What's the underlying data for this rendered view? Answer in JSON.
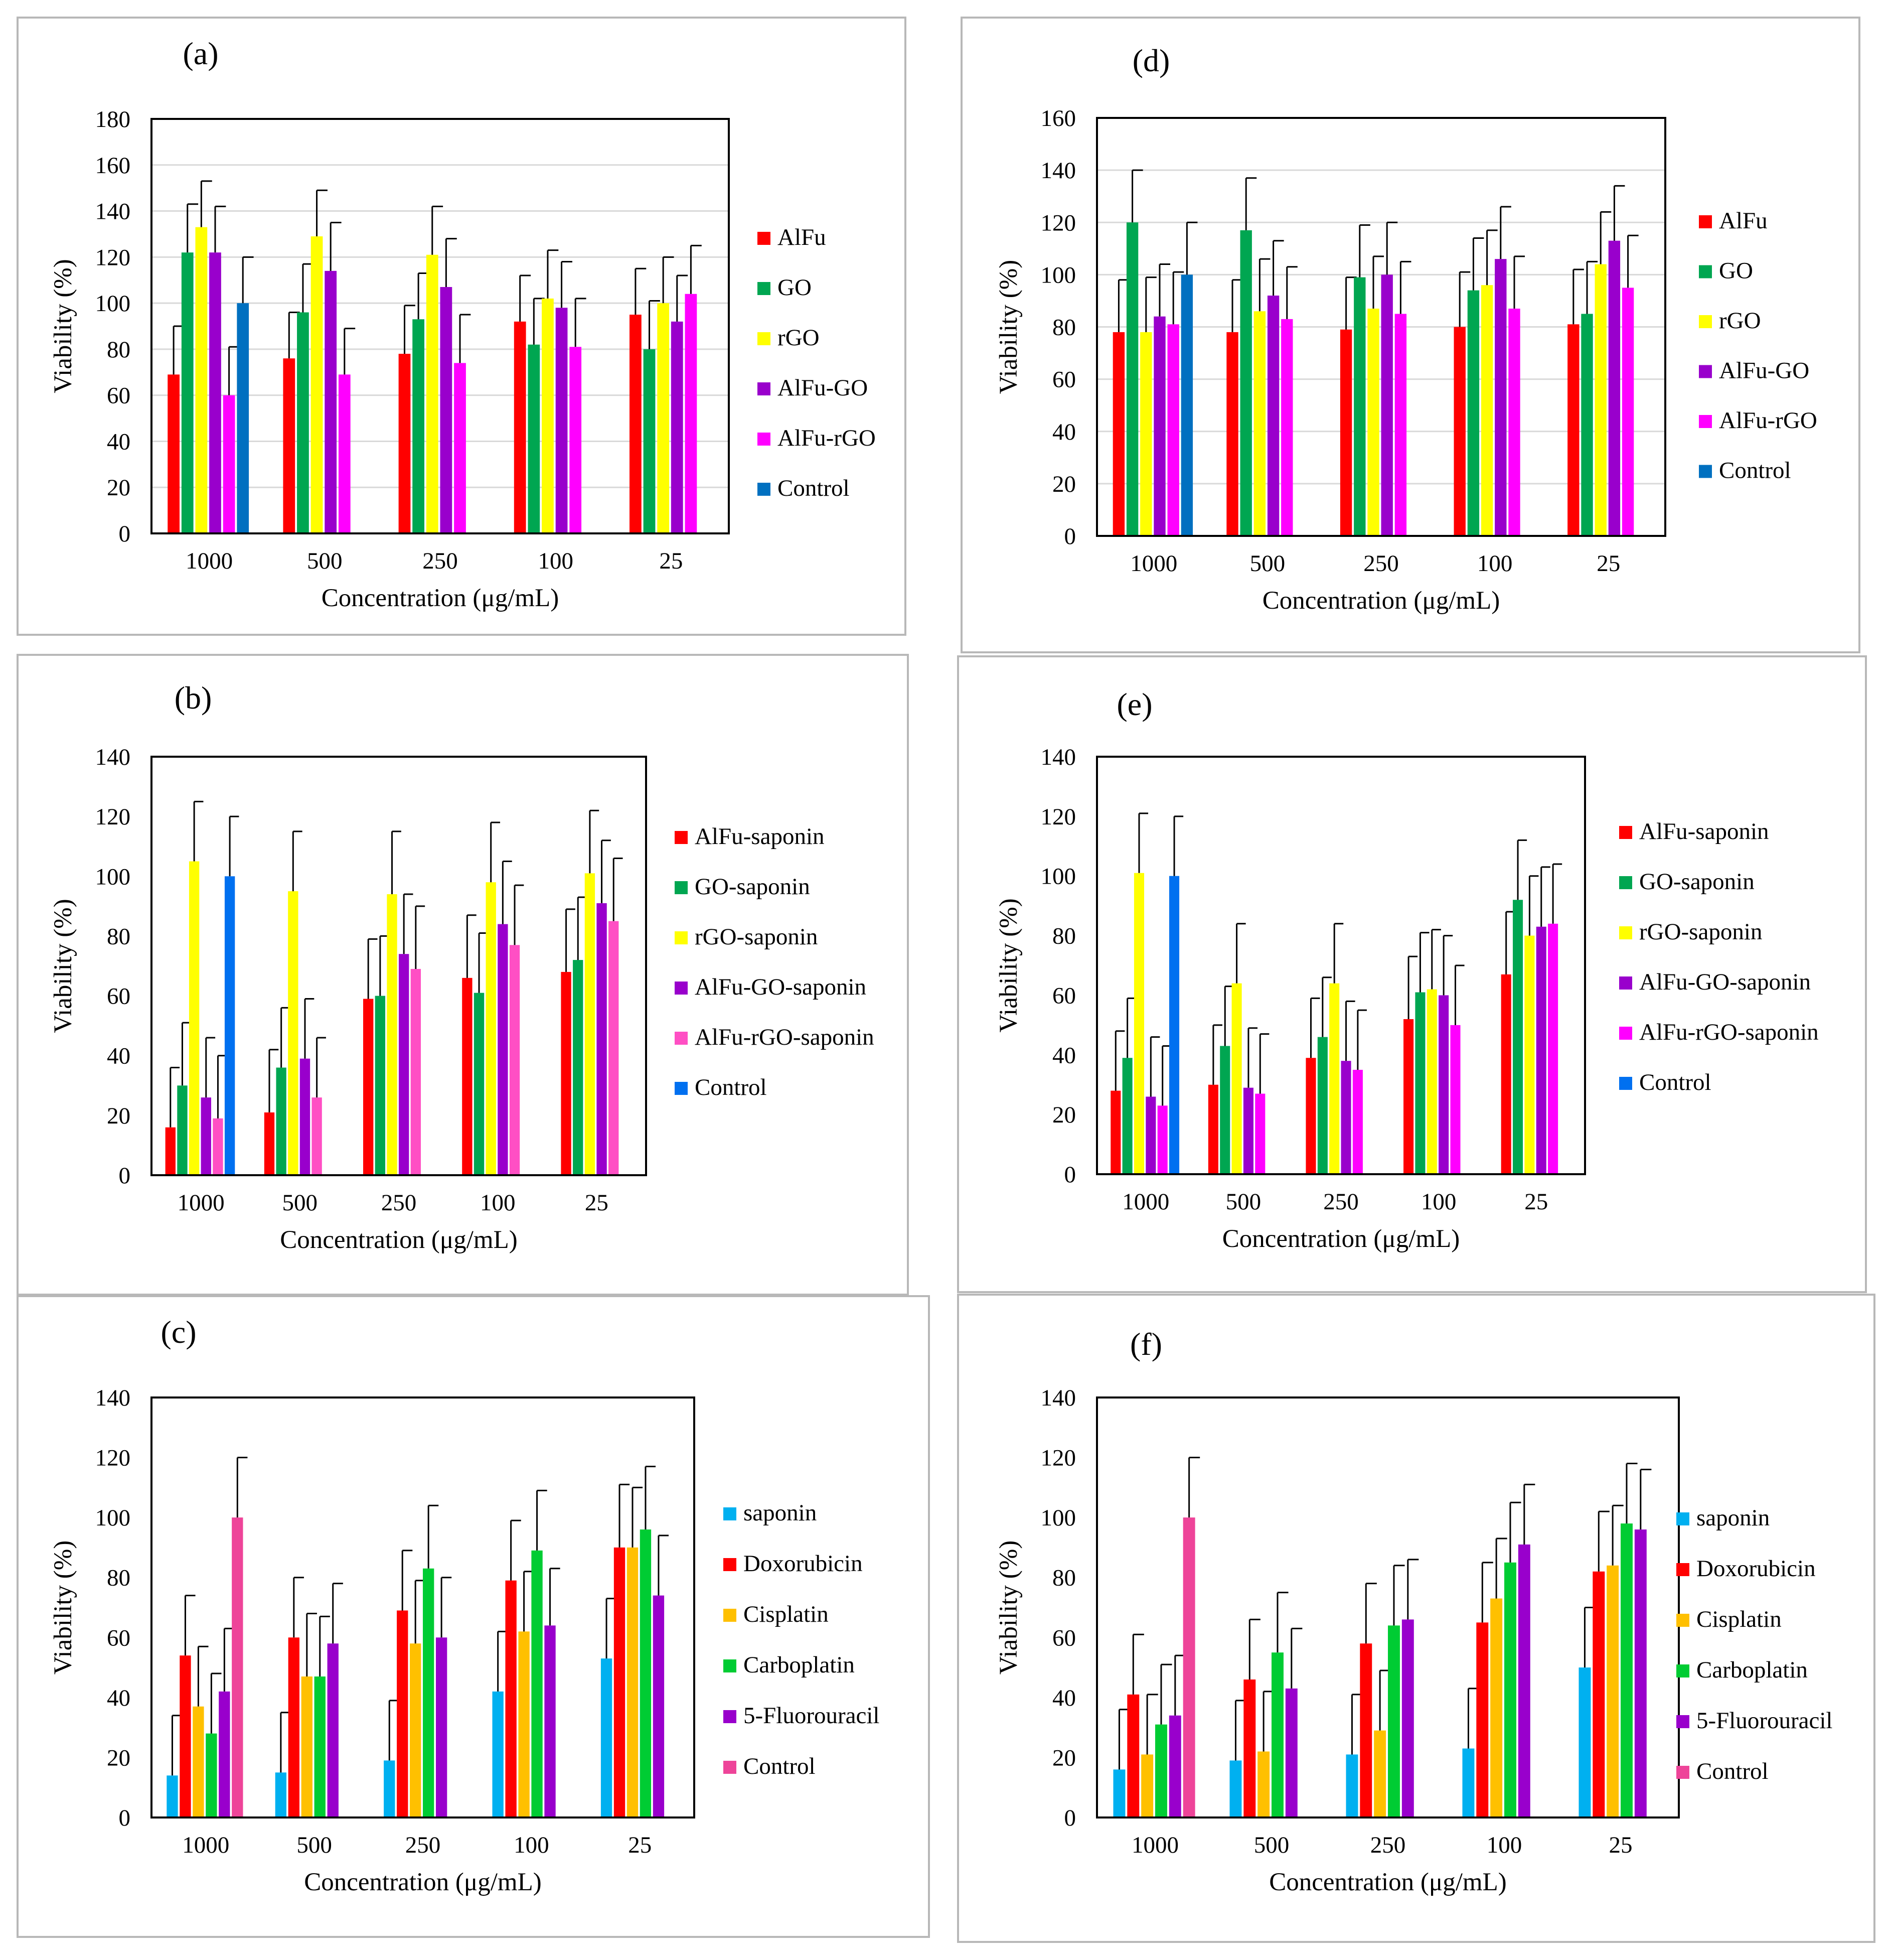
{
  "chart_data": [
    {
      "type": "bar",
      "panel_label": "(a)",
      "categories": [
        "1000",
        "500",
        "250",
        "100",
        "25"
      ],
      "xlabel": "Concentration (μg/mL)",
      "ylabel": "Viability  (%)",
      "ylim": [
        0,
        180
      ],
      "yticks": [
        0,
        20,
        40,
        60,
        80,
        100,
        120,
        140,
        160,
        180
      ],
      "grid": true,
      "legend_position": "right",
      "series": [
        {
          "name": "AlFu",
          "color": "#ff0000",
          "values": [
            69,
            76,
            78,
            92,
            95
          ],
          "errors": [
            21,
            20,
            21,
            20,
            20
          ]
        },
        {
          "name": "GO",
          "color": "#00a651",
          "values": [
            122,
            96,
            93,
            82,
            80
          ],
          "errors": [
            21,
            21,
            20,
            20,
            21
          ]
        },
        {
          "name": "rGO",
          "color": "#ffff00",
          "values": [
            133,
            129,
            121,
            102,
            100
          ],
          "errors": [
            20,
            20,
            21,
            21,
            20
          ]
        },
        {
          "name": "AlFu-GO",
          "color": "#9900cc",
          "values": [
            122,
            114,
            107,
            98,
            92
          ],
          "errors": [
            20,
            21,
            21,
            20,
            20
          ]
        },
        {
          "name": "AlFu-rGO",
          "color": "#ff00ff",
          "values": [
            60,
            69,
            74,
            81,
            104
          ],
          "errors": [
            21,
            20,
            21,
            21,
            21
          ]
        },
        {
          "name": "Control",
          "color": "#0070c0",
          "values": [
            100,
            null,
            null,
            null,
            null
          ],
          "errors": [
            20,
            null,
            null,
            null,
            null
          ]
        }
      ]
    },
    {
      "type": "bar",
      "panel_label": "(b)",
      "categories": [
        "1000",
        "500",
        "250",
        "100",
        "25"
      ],
      "xlabel": "Concentration (μg/mL)",
      "ylabel": "Viability  (%)",
      "ylim": [
        0,
        140
      ],
      "yticks": [
        0,
        20,
        40,
        60,
        80,
        100,
        120,
        140
      ],
      "grid": false,
      "legend_position": "right",
      "series": [
        {
          "name": "AlFu-saponin",
          "color": "#ff0000",
          "values": [
            16,
            21,
            59,
            66,
            68
          ],
          "errors": [
            20,
            21,
            20,
            21,
            21
          ]
        },
        {
          "name": "GO-saponin",
          "color": "#00a651",
          "values": [
            30,
            36,
            60,
            61,
            72
          ],
          "errors": [
            21,
            20,
            20,
            20,
            21
          ]
        },
        {
          "name": "rGO-saponin",
          "color": "#ffff00",
          "values": [
            105,
            95,
            94,
            98,
            101
          ],
          "errors": [
            20,
            20,
            21,
            20,
            21
          ]
        },
        {
          "name": "AlFu-GO-saponin",
          "color": "#9900cc",
          "values": [
            26,
            39,
            74,
            84,
            91
          ],
          "errors": [
            20,
            20,
            20,
            21,
            21
          ]
        },
        {
          "name": "AlFu-rGO-saponin",
          "color": "#ff4fc4",
          "values": [
            19,
            26,
            69,
            77,
            85
          ],
          "errors": [
            21,
            20,
            21,
            20,
            21
          ]
        },
        {
          "name": "Control",
          "color": "#0070f0",
          "values": [
            100,
            null,
            null,
            null,
            null
          ],
          "errors": [
            20,
            null,
            null,
            null,
            null
          ]
        }
      ]
    },
    {
      "type": "bar",
      "panel_label": "(c)",
      "categories": [
        "1000",
        "500",
        "250",
        "100",
        "25"
      ],
      "xlabel": "Concentration (μg/mL)",
      "ylabel": "Viability  (%)",
      "ylim": [
        0,
        140
      ],
      "yticks": [
        0,
        20,
        40,
        60,
        80,
        100,
        120,
        140
      ],
      "grid": false,
      "legend_position": "right",
      "series": [
        {
          "name": "saponin",
          "color": "#00b0f0",
          "values": [
            14,
            15,
            19,
            42,
            53
          ],
          "errors": [
            20,
            20,
            20,
            20,
            20
          ]
        },
        {
          "name": "Doxorubicin",
          "color": "#ff0000",
          "values": [
            54,
            60,
            69,
            79,
            90
          ],
          "errors": [
            20,
            20,
            20,
            20,
            21
          ]
        },
        {
          "name": "Cisplatin",
          "color": "#ffc000",
          "values": [
            37,
            47,
            58,
            62,
            90
          ],
          "errors": [
            20,
            21,
            21,
            20,
            20
          ]
        },
        {
          "name": "Carboplatin",
          "color": "#00cc33",
          "values": [
            28,
            47,
            83,
            89,
            96
          ],
          "errors": [
            20,
            20,
            21,
            20,
            21
          ]
        },
        {
          "name": "5-Fluorouracil",
          "color": "#9900cc",
          "values": [
            42,
            58,
            60,
            64,
            74
          ],
          "errors": [
            21,
            20,
            20,
            19,
            20
          ]
        },
        {
          "name": "Control",
          "color": "#ee4499",
          "values": [
            100,
            null,
            null,
            null,
            null
          ],
          "errors": [
            20,
            null,
            null,
            null,
            null
          ]
        }
      ]
    },
    {
      "type": "bar",
      "panel_label": "(d)",
      "categories": [
        "1000",
        "500",
        "250",
        "100",
        "25"
      ],
      "xlabel": "Concentration (μg/mL)",
      "ylabel": "Viability  (%)",
      "ylim": [
        0,
        160
      ],
      "yticks": [
        0,
        20,
        40,
        60,
        80,
        100,
        120,
        140,
        160
      ],
      "grid": true,
      "legend_position": "right",
      "series": [
        {
          "name": "AlFu",
          "color": "#ff0000",
          "values": [
            78,
            78,
            79,
            80,
            81
          ],
          "errors": [
            20,
            20,
            20,
            21,
            21
          ]
        },
        {
          "name": "GO",
          "color": "#00a651",
          "values": [
            120,
            117,
            99,
            94,
            85
          ],
          "errors": [
            20,
            20,
            20,
            20,
            20
          ]
        },
        {
          "name": "rGO",
          "color": "#ffff00",
          "values": [
            78,
            86,
            87,
            96,
            104
          ],
          "errors": [
            21,
            20,
            20,
            21,
            20
          ]
        },
        {
          "name": "AlFu-GO",
          "color": "#9900cc",
          "values": [
            84,
            92,
            100,
            106,
            113
          ],
          "errors": [
            20,
            21,
            20,
            20,
            21
          ]
        },
        {
          "name": "AlFu-rGO",
          "color": "#ff00ff",
          "values": [
            81,
            83,
            85,
            87,
            95
          ],
          "errors": [
            20,
            20,
            20,
            20,
            20
          ]
        },
        {
          "name": "Control",
          "color": "#0070c0",
          "values": [
            100,
            null,
            null,
            null,
            null
          ],
          "errors": [
            20,
            null,
            null,
            null,
            null
          ]
        }
      ]
    },
    {
      "type": "bar",
      "panel_label": "(e)",
      "categories": [
        "1000",
        "500",
        "250",
        "100",
        "25"
      ],
      "xlabel": "Concentration (μg/mL)",
      "ylabel": "Viability  (%)",
      "ylim": [
        0,
        140
      ],
      "yticks": [
        0,
        20,
        40,
        60,
        80,
        100,
        120,
        140
      ],
      "grid": false,
      "legend_position": "right",
      "series": [
        {
          "name": "AlFu-saponin",
          "color": "#ff0000",
          "values": [
            28,
            30,
            39,
            52,
            67
          ],
          "errors": [
            20,
            20,
            20,
            21,
            21
          ]
        },
        {
          "name": "GO-saponin",
          "color": "#00a651",
          "values": [
            39,
            43,
            46,
            61,
            92
          ],
          "errors": [
            20,
            20,
            20,
            20,
            20
          ]
        },
        {
          "name": "rGO-saponin",
          "color": "#ffff00",
          "values": [
            101,
            64,
            64,
            62,
            80
          ],
          "errors": [
            20,
            20,
            20,
            20,
            20
          ]
        },
        {
          "name": "AlFu-GO-saponin",
          "color": "#9900cc",
          "values": [
            26,
            29,
            38,
            60,
            83
          ],
          "errors": [
            20,
            20,
            20,
            20,
            20
          ]
        },
        {
          "name": "AlFu-rGO-saponin",
          "color": "#ff00ff",
          "values": [
            23,
            27,
            35,
            50,
            84
          ],
          "errors": [
            20,
            20,
            20,
            20,
            20
          ]
        },
        {
          "name": "Control",
          "color": "#0070f0",
          "values": [
            100,
            null,
            null,
            null,
            null
          ],
          "errors": [
            20,
            null,
            null,
            null,
            null
          ]
        }
      ]
    },
    {
      "type": "bar",
      "panel_label": "(f)",
      "categories": [
        "1000",
        "500",
        "250",
        "100",
        "25"
      ],
      "xlabel": "Concentration (μg/mL)",
      "ylabel": "Viability  (%)",
      "ylim": [
        0,
        140
      ],
      "yticks": [
        0,
        20,
        40,
        60,
        80,
        100,
        120,
        140
      ],
      "grid": false,
      "legend_position": "right",
      "series": [
        {
          "name": "saponin",
          "color": "#00b0f0",
          "values": [
            16,
            19,
            21,
            23,
            50
          ],
          "errors": [
            20,
            20,
            20,
            20,
            20
          ]
        },
        {
          "name": "Doxorubicin",
          "color": "#ff0000",
          "values": [
            41,
            46,
            58,
            65,
            82
          ],
          "errors": [
            20,
            20,
            20,
            20,
            20
          ]
        },
        {
          "name": "Cisplatin",
          "color": "#ffc000",
          "values": [
            21,
            22,
            29,
            73,
            84
          ],
          "errors": [
            20,
            20,
            20,
            20,
            20
          ]
        },
        {
          "name": "Carboplatin",
          "color": "#00cc33",
          "values": [
            31,
            55,
            64,
            85,
            98
          ],
          "errors": [
            20,
            20,
            20,
            20,
            20
          ]
        },
        {
          "name": "5-Fluorouracil",
          "color": "#9900cc",
          "values": [
            34,
            43,
            66,
            91,
            96
          ],
          "errors": [
            20,
            20,
            20,
            20,
            20
          ]
        },
        {
          "name": "Control",
          "color": "#ee4499",
          "values": [
            100,
            null,
            null,
            null,
            null
          ],
          "errors": [
            20,
            null,
            null,
            null,
            null
          ]
        }
      ]
    }
  ]
}
